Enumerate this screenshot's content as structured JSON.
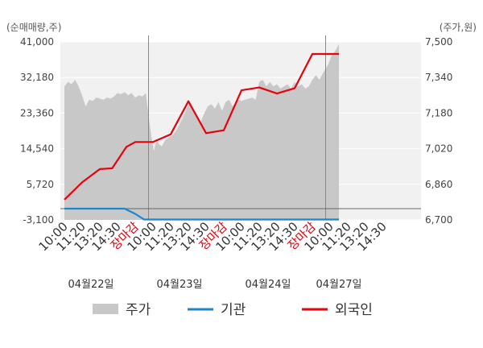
{
  "chart_data": {
    "type": "area",
    "left_axis": {
      "unit": "(순매매량,주)",
      "ticks": [
        "41,000",
        "32,180",
        "23,360",
        "14,540",
        "5,720",
        "-3,100"
      ],
      "range": [
        -3100,
        41000
      ]
    },
    "right_axis": {
      "unit": "(주가,원)",
      "ticks": [
        "7,500",
        "7,340",
        "7,180",
        "7,020",
        "6,860",
        "6,700"
      ],
      "range": [
        6700,
        7500
      ]
    },
    "x_ticks": [
      {
        "label": "10:00",
        "close": false
      },
      {
        "label": "11:20",
        "close": false
      },
      {
        "label": "13:20",
        "close": false
      },
      {
        "label": "14:30",
        "close": false
      },
      {
        "label": "장마감",
        "close": true
      },
      {
        "label": "10:00",
        "close": false
      },
      {
        "label": "11:20",
        "close": false
      },
      {
        "label": "13:20",
        "close": false
      },
      {
        "label": "14:30",
        "close": false
      },
      {
        "label": "장마감",
        "close": true
      },
      {
        "label": "10:00",
        "close": false
      },
      {
        "label": "11:20",
        "close": false
      },
      {
        "label": "13:20",
        "close": false
      },
      {
        "label": "14:30",
        "close": false
      },
      {
        "label": "장마감",
        "close": true
      },
      {
        "label": "10:00",
        "close": false
      },
      {
        "label": "11:20",
        "close": false
      },
      {
        "label": "13:20",
        "close": false
      },
      {
        "label": "14:30",
        "close": false
      }
    ],
    "date_labels": [
      {
        "label": "04월22일",
        "slot": 1.5
      },
      {
        "label": "04월23일",
        "slot": 6.5
      },
      {
        "label": "04월24일",
        "slot": 11.5
      },
      {
        "label": "04월27일",
        "slot": 15.5
      }
    ],
    "day_dividers": [
      4.75,
      14.75
    ],
    "series": [
      {
        "name": "주가",
        "axis": "right",
        "style": "area",
        "color": "#c8c8c8",
        "x": [
          0,
          0.2,
          0.4,
          0.6,
          0.8,
          1.0,
          1.2,
          1.4,
          1.6,
          1.8,
          2.0,
          2.2,
          2.4,
          2.6,
          2.8,
          3.0,
          3.2,
          3.4,
          3.6,
          3.8,
          4.0,
          4.2,
          4.4,
          4.6,
          4.75,
          4.9,
          5.05,
          5.2,
          5.35,
          5.5,
          5.7,
          5.9,
          6.1,
          6.3,
          6.5,
          6.7,
          6.9,
          7.1,
          7.3,
          7.5,
          7.7,
          7.9,
          8.1,
          8.3,
          8.5,
          8.7,
          8.9,
          9.1,
          9.3,
          9.5,
          9.7,
          9.85,
          10.0,
          10.2,
          10.4,
          10.6,
          10.8,
          11.0,
          11.2,
          11.4,
          11.6,
          11.8,
          12.0,
          12.2,
          12.4,
          12.6,
          12.8,
          13.0,
          13.2,
          13.4,
          13.6,
          13.8,
          14.0,
          14.2,
          14.4,
          14.6,
          14.75,
          14.9,
          15.1,
          15.3,
          15.5
        ],
        "values": [
          7300,
          7320,
          7310,
          7330,
          7300,
          7260,
          7210,
          7240,
          7235,
          7250,
          7245,
          7240,
          7250,
          7245,
          7255,
          7270,
          7265,
          7275,
          7260,
          7270,
          7250,
          7260,
          7255,
          7270,
          7170,
          7080,
          7010,
          7060,
          7040,
          7030,
          7060,
          7070,
          7080,
          7100,
          7130,
          7160,
          7200,
          7230,
          7190,
          7170,
          7140,
          7180,
          7210,
          7220,
          7200,
          7230,
          7190,
          7230,
          7240,
          7210,
          7230,
          7240,
          7235,
          7240,
          7245,
          7250,
          7240,
          7320,
          7330,
          7300,
          7320,
          7300,
          7310,
          7290,
          7300,
          7310,
          7290,
          7320,
          7300,
          7310,
          7290,
          7300,
          7330,
          7350,
          7330,
          7360,
          7380,
          7400,
          7440,
          7460,
          7490
        ]
      },
      {
        "name": "기관",
        "axis": "left",
        "style": "line",
        "color": "#1a86d0",
        "x": [
          0.0,
          3.4,
          4.0,
          4.5,
          15.5
        ],
        "values": [
          -300,
          -300,
          -1600,
          -3000,
          -3000
        ]
      },
      {
        "name": "외국인",
        "axis": "left",
        "style": "line",
        "color": "#e8000b",
        "x": [
          0.0,
          1.0,
          2.0,
          2.7,
          3.5,
          4.0,
          5.0,
          6.0,
          7.0,
          8.0,
          9.0,
          10.0,
          11.0,
          12.0,
          13.0,
          14.0,
          15.5
        ],
        "values": [
          1900,
          6200,
          9500,
          9700,
          15000,
          16200,
          16200,
          18100,
          26300,
          18400,
          19100,
          29000,
          29700,
          28200,
          29500,
          38000,
          38000
        ]
      }
    ],
    "legend": [
      "주가",
      "기관",
      "외국인"
    ]
  }
}
